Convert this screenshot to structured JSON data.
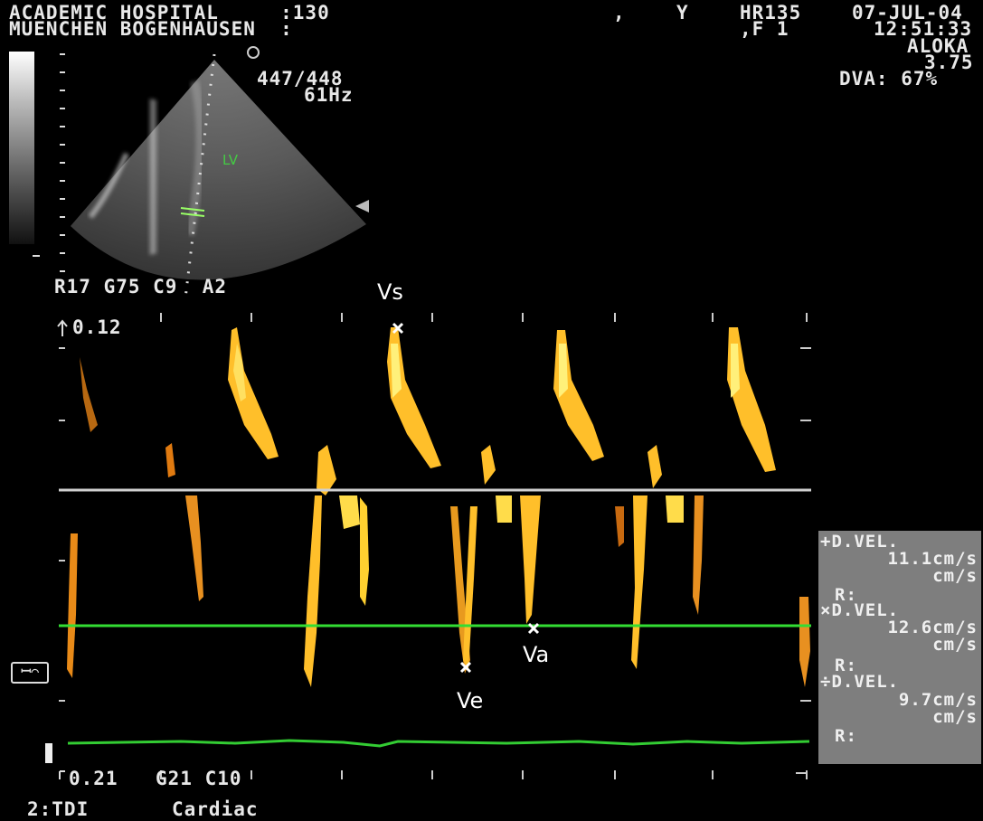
{
  "header": {
    "line1": "ACADEMIC HOSPITAL     :130",
    "line2": "MUENCHEN BOGENHAUSEN  :",
    "comma": ",",
    "y": "Y",
    "hr": "HR135",
    "f1": ",F 1",
    "date": "07-JUL-04",
    "time": "12:51:33",
    "vendor": "ALOKA",
    "depth": "3.75",
    "dva": "DVA: 67%",
    "frame": "447/448",
    "rate": "61Hz"
  },
  "image_labels": {
    "lv": "LV",
    "settings": "R17 G75 C9  A2",
    "vs": "Vs",
    "ve": "Ve",
    "va": "Va",
    "scale_top": "0.12",
    "scale_bottom": "0.21",
    "bottom_settings": "G21 C10",
    "mode": "2:TDI",
    "preset": "Cardiac"
  },
  "measurements": {
    "m1_label": "D.VEL.",
    "m1_value": "11.1cm/s",
    "m1_unit": "cm/s",
    "m1_r": "R:",
    "m2_label": "D.VEL.",
    "m2_value": "12.6cm/s",
    "m2_unit": "cm/s",
    "m2_r": "R:",
    "m3_label": "D.VEL.",
    "m3_value": "9.7cm/s",
    "m3_unit": "cm/s",
    "m3_r": "R:"
  },
  "colors": {
    "doppler": "#ffcc33",
    "baseline": "#d0d0d0",
    "marker_line": "#33dd33",
    "ecg": "#33cc33",
    "panel": "#7e7e7e"
  }
}
